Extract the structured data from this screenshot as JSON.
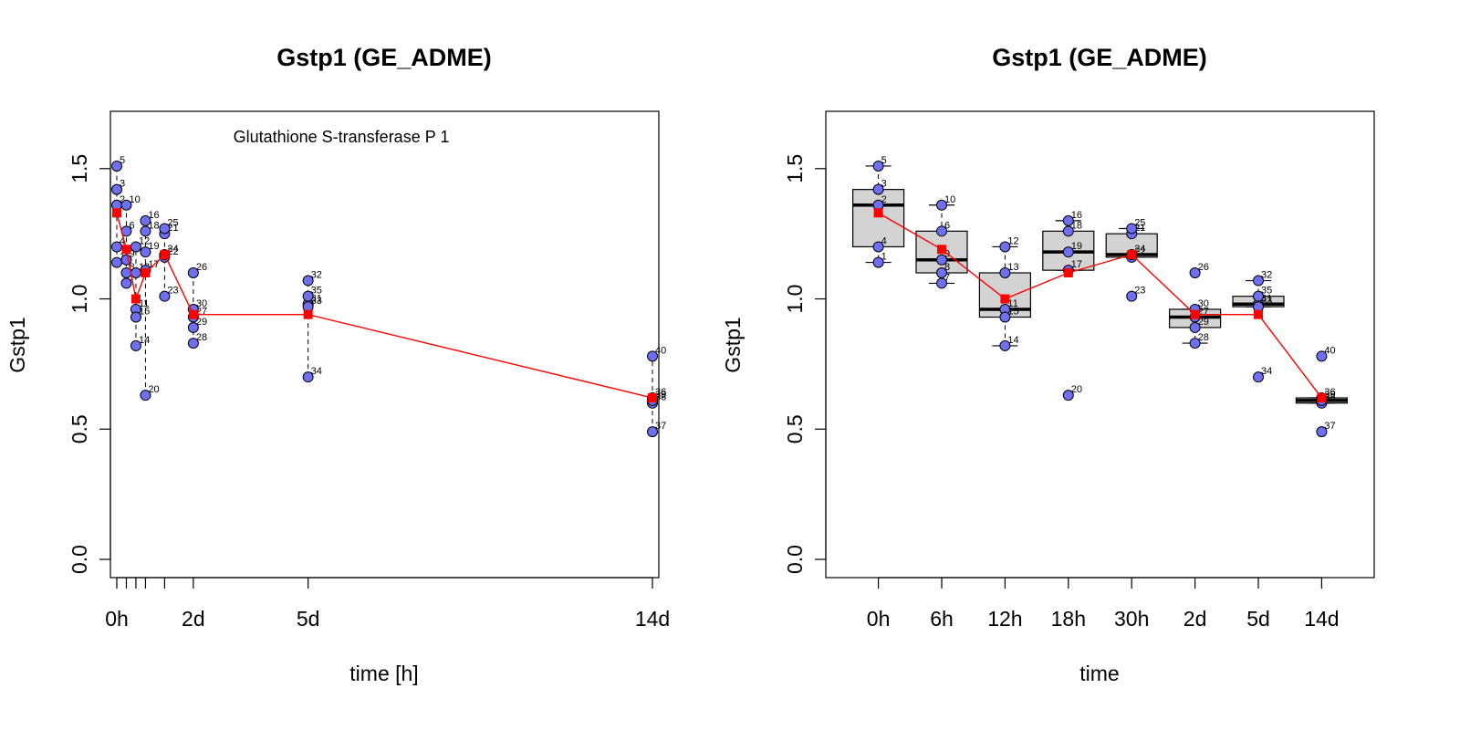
{
  "chart_data": [
    {
      "type": "scatter",
      "title": "Gstp1 (GE_ADME)",
      "xlabel": "time [h]",
      "ylabel": "Gstp1",
      "annotation": "Glutathione S-transferase P 1",
      "xlim": [
        -4,
        340
      ],
      "ylim": [
        -0.07,
        1.72
      ],
      "x_ticks": [
        0,
        6,
        12,
        18,
        30,
        48,
        120,
        336
      ],
      "x_tick_labels": [
        {
          "x": 0,
          "label": "0h"
        },
        {
          "x": 48,
          "label": "2d"
        },
        {
          "x": 120,
          "label": "5d"
        },
        {
          "x": 336,
          "label": "14d"
        }
      ],
      "y_ticks": [
        0.0,
        0.5,
        1.0,
        1.5
      ],
      "y_tick_labels": [
        "0.0",
        "0.5",
        "1.0",
        "1.5"
      ],
      "grid": false,
      "points": [
        {
          "id": "1",
          "x": 0,
          "y": 1.14
        },
        {
          "id": "2",
          "x": 0,
          "y": 1.36
        },
        {
          "id": "3",
          "x": 0,
          "y": 1.42
        },
        {
          "id": "4",
          "x": 0,
          "y": 1.2
        },
        {
          "id": "5",
          "x": 0,
          "y": 1.51
        },
        {
          "id": "6",
          "x": 6,
          "y": 1.26
        },
        {
          "id": "7",
          "x": 6,
          "y": 1.06
        },
        {
          "id": "8",
          "x": 6,
          "y": 1.1
        },
        {
          "id": "9",
          "x": 6,
          "y": 1.15
        },
        {
          "id": "10",
          "x": 6,
          "y": 1.36
        },
        {
          "id": "11",
          "x": 12,
          "y": 0.96
        },
        {
          "id": "12",
          "x": 12,
          "y": 1.2
        },
        {
          "id": "13",
          "x": 12,
          "y": 1.1
        },
        {
          "id": "14",
          "x": 12,
          "y": 0.82
        },
        {
          "id": "15",
          "x": 12,
          "y": 0.93
        },
        {
          "id": "16",
          "x": 18,
          "y": 1.3
        },
        {
          "id": "17",
          "x": 18,
          "y": 1.11
        },
        {
          "id": "18",
          "x": 18,
          "y": 1.26
        },
        {
          "id": "19",
          "x": 18,
          "y": 1.18
        },
        {
          "id": "20",
          "x": 18,
          "y": 0.63
        },
        {
          "id": "21",
          "x": 30,
          "y": 1.25
        },
        {
          "id": "22",
          "x": 30,
          "y": 1.16
        },
        {
          "id": "23",
          "x": 30,
          "y": 1.01
        },
        {
          "id": "24",
          "x": 30,
          "y": 1.17
        },
        {
          "id": "25",
          "x": 30,
          "y": 1.27
        },
        {
          "id": "26",
          "x": 48,
          "y": 1.1
        },
        {
          "id": "27",
          "x": 48,
          "y": 0.93
        },
        {
          "id": "28",
          "x": 48,
          "y": 0.83
        },
        {
          "id": "29",
          "x": 48,
          "y": 0.89
        },
        {
          "id": "30",
          "x": 48,
          "y": 0.96
        },
        {
          "id": "31",
          "x": 120,
          "y": 0.98
        },
        {
          "id": "32",
          "x": 120,
          "y": 1.07
        },
        {
          "id": "33",
          "x": 120,
          "y": 0.97
        },
        {
          "id": "34",
          "x": 120,
          "y": 0.7
        },
        {
          "id": "35",
          "x": 120,
          "y": 1.01
        },
        {
          "id": "36",
          "x": 336,
          "y": 0.62
        },
        {
          "id": "37",
          "x": 336,
          "y": 0.49
        },
        {
          "id": "38",
          "x": 336,
          "y": 0.6
        },
        {
          "id": "39",
          "x": 336,
          "y": 0.61
        },
        {
          "id": "40",
          "x": 336,
          "y": 0.78
        }
      ],
      "mean_line": {
        "x": [
          0,
          6,
          12,
          18,
          30,
          48,
          120,
          336
        ],
        "y": [
          1.33,
          1.19,
          1.0,
          1.1,
          1.17,
          0.94,
          0.94,
          0.62
        ]
      },
      "colors": {
        "points": "#6f6ff2",
        "mean": "#ff0000"
      }
    },
    {
      "type": "box",
      "title": "Gstp1 (GE_ADME)",
      "xlabel": "time",
      "ylabel": "Gstp1",
      "ylim": [
        -0.07,
        1.72
      ],
      "categories": [
        "0h",
        "6h",
        "12h",
        "18h",
        "30h",
        "2d",
        "5d",
        "14d"
      ],
      "y_ticks": [
        0.0,
        0.5,
        1.0,
        1.5
      ],
      "y_tick_labels": [
        "0.0",
        "0.5",
        "1.0",
        "1.5"
      ],
      "grid": false,
      "boxes": [
        {
          "category": "0h",
          "whisker_low": 1.14,
          "q1": 1.2,
          "median": 1.36,
          "q3": 1.42,
          "whisker_high": 1.51
        },
        {
          "category": "6h",
          "whisker_low": 1.06,
          "q1": 1.1,
          "median": 1.15,
          "q3": 1.26,
          "whisker_high": 1.36
        },
        {
          "category": "12h",
          "whisker_low": 0.82,
          "q1": 0.93,
          "median": 0.96,
          "q3": 1.1,
          "whisker_high": 1.2
        },
        {
          "category": "18h",
          "whisker_low": 1.11,
          "q1": 1.11,
          "median": 1.18,
          "q3": 1.26,
          "whisker_high": 1.3
        },
        {
          "category": "30h",
          "whisker_low": 1.16,
          "q1": 1.16,
          "median": 1.17,
          "q3": 1.25,
          "whisker_high": 1.27
        },
        {
          "category": "2d",
          "whisker_low": 0.83,
          "q1": 0.89,
          "median": 0.93,
          "q3": 0.96,
          "whisker_high": 0.96
        },
        {
          "category": "5d",
          "whisker_low": 0.97,
          "q1": 0.97,
          "median": 0.98,
          "q3": 1.01,
          "whisker_high": 1.07
        },
        {
          "category": "14d",
          "whisker_low": 0.6,
          "q1": 0.6,
          "median": 0.61,
          "q3": 0.62,
          "whisker_high": 0.62
        }
      ],
      "colors": {
        "box_fill": "#d3d3d3",
        "points": "#6f6ff2",
        "mean": "#ff0000"
      }
    }
  ]
}
